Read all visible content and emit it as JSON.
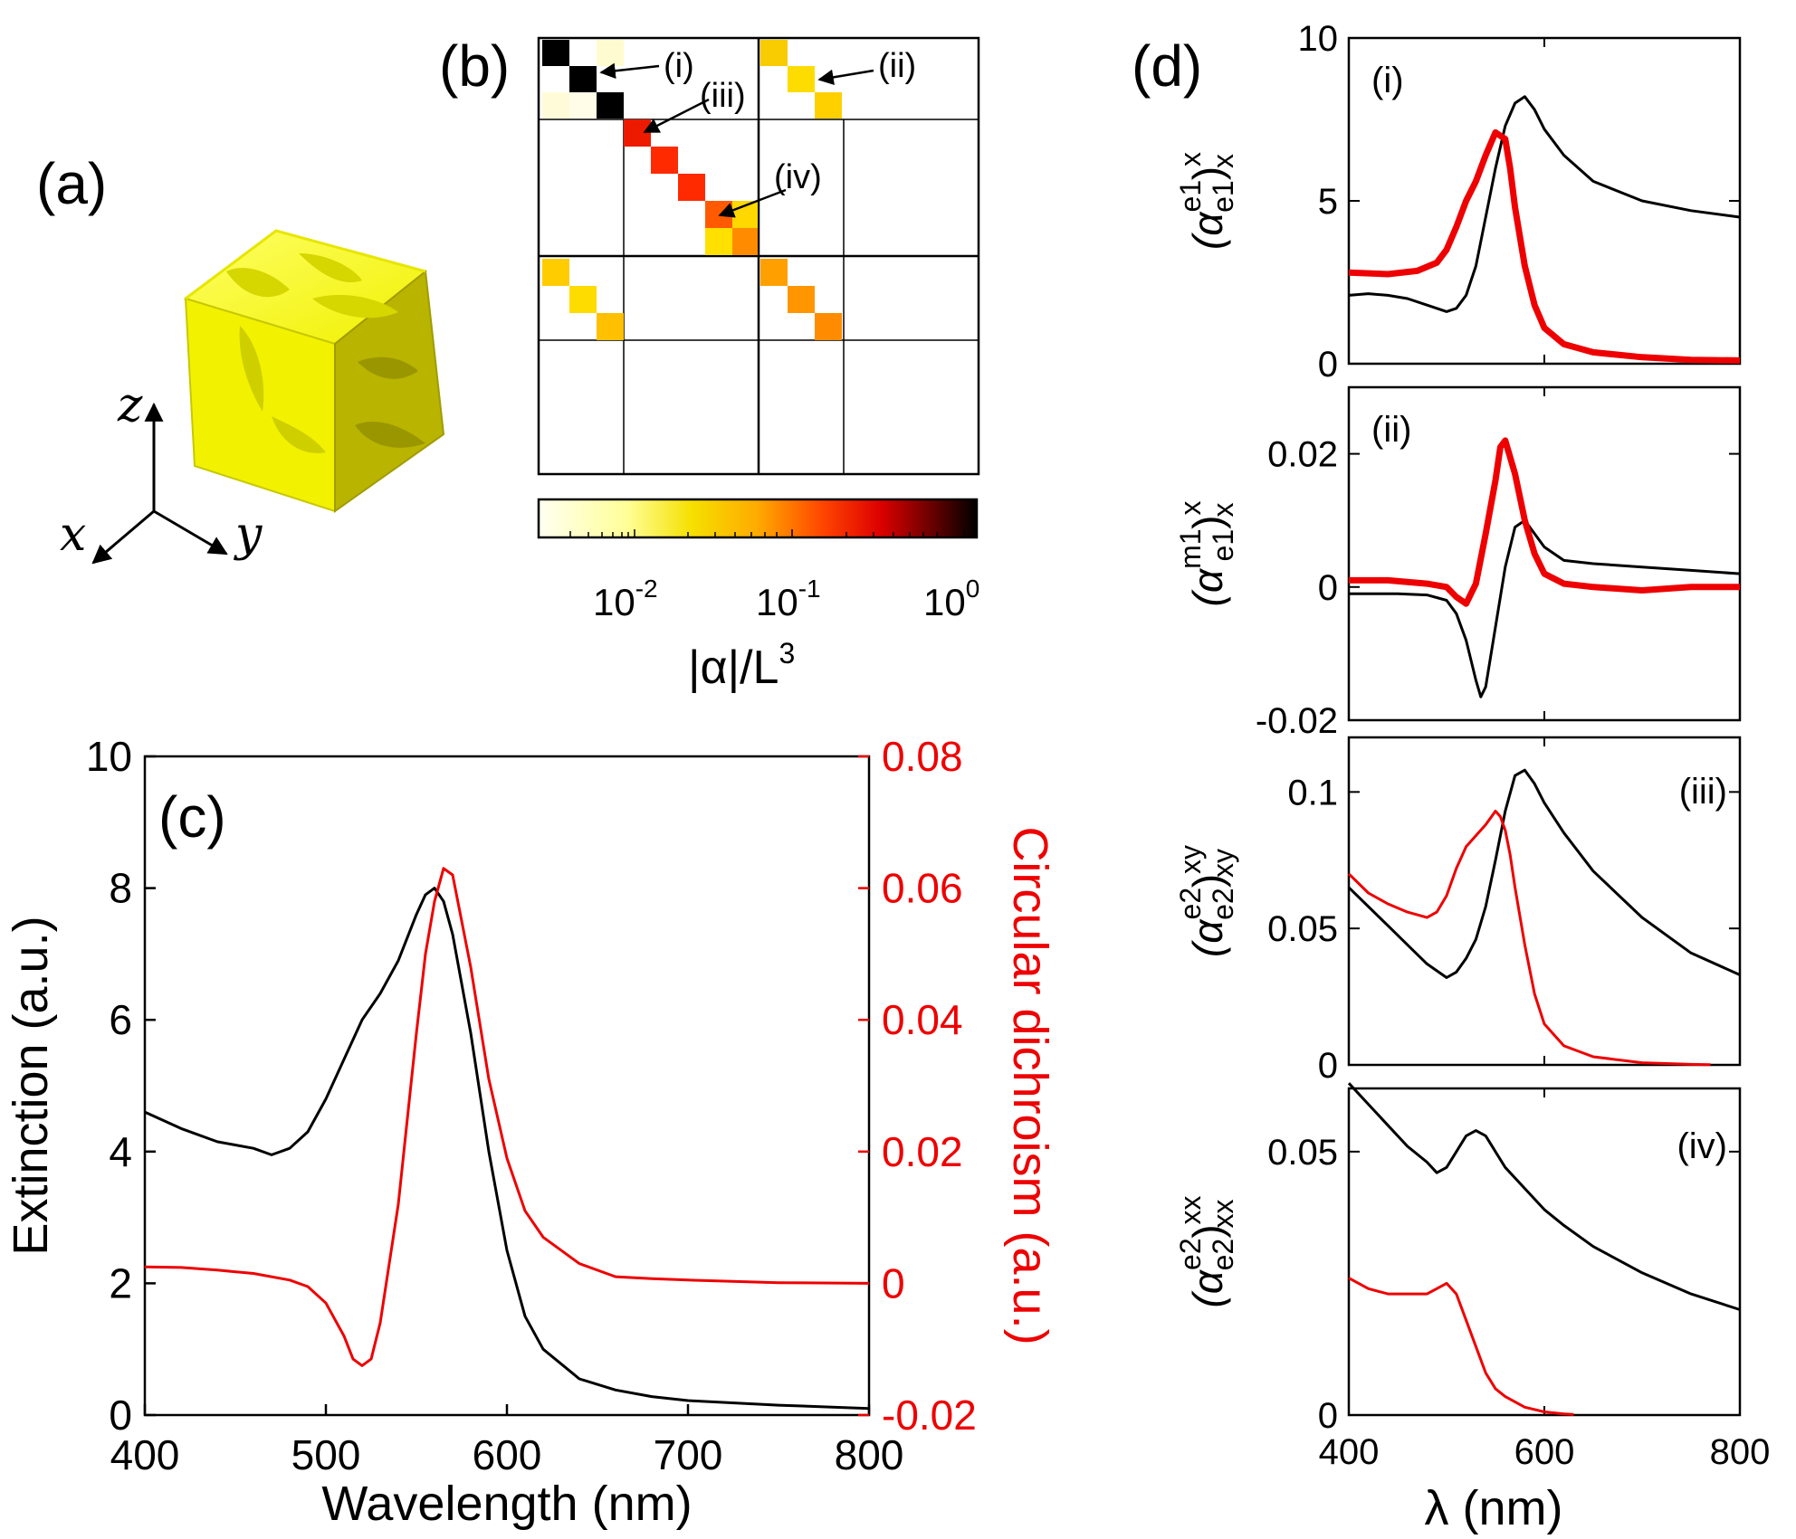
{
  "panel_labels": {
    "a": "(a)",
    "b": "(b)",
    "c": "(c)",
    "d": "(d)"
  },
  "axes3d": {
    "z": "z",
    "x": "x",
    "y": "y"
  },
  "colors": {
    "black": "#000000",
    "red": "#ee0000",
    "gold": "#e8e800"
  },
  "matrix": {
    "annotations": {
      "i": "(i)",
      "ii": "(ii)",
      "iii": "(iii)",
      "iv": "(iv)"
    },
    "colorbar": {
      "tick_labels": [
        "10",
        "10",
        "10"
      ],
      "tick_exps": [
        "-2",
        "-1",
        "0"
      ],
      "label": "|α|/L",
      "label_exp": "3"
    }
  },
  "chart_data": [
    {
      "id": "c",
      "type": "line",
      "xlabel": "Wavelength (nm)",
      "ylabel": "Extinction (a.u.)",
      "y2label": "Circular dichroism (a.u.)",
      "xlim": [
        400,
        800
      ],
      "ylim": [
        0,
        10
      ],
      "y2lim": [
        -0.02,
        0.08
      ],
      "xticks": [
        "400",
        "500",
        "600",
        "700",
        "800"
      ],
      "yticks": [
        "0",
        "2",
        "4",
        "6",
        "8",
        "10"
      ],
      "y2ticks": [
        "-0.02",
        "0",
        "0.02",
        "0.04",
        "0.06",
        "0.08"
      ],
      "series": [
        {
          "name": "Extinction",
          "axis": "left",
          "color": "#000000",
          "x": [
            400,
            420,
            440,
            460,
            470,
            480,
            490,
            500,
            510,
            520,
            530,
            540,
            550,
            555,
            560,
            565,
            570,
            580,
            590,
            600,
            610,
            620,
            640,
            660,
            680,
            700,
            750,
            800
          ],
          "y": [
            4.6,
            4.35,
            4.15,
            4.05,
            3.95,
            4.05,
            4.3,
            4.8,
            5.4,
            6.0,
            6.4,
            6.9,
            7.6,
            7.9,
            8.0,
            7.8,
            7.3,
            5.8,
            4.0,
            2.5,
            1.5,
            1.0,
            0.55,
            0.38,
            0.28,
            0.22,
            0.15,
            0.1
          ]
        },
        {
          "name": "Circular dichroism",
          "axis": "right",
          "color": "#ee0000",
          "x": [
            400,
            420,
            440,
            460,
            480,
            490,
            500,
            510,
            515,
            520,
            525,
            530,
            540,
            550,
            555,
            560,
            565,
            570,
            580,
            590,
            600,
            610,
            620,
            640,
            660,
            680,
            700,
            750,
            800
          ],
          "y": [
            0.0025,
            0.0024,
            0.002,
            0.0015,
            0.0005,
            -0.0005,
            -0.003,
            -0.008,
            -0.0115,
            -0.0125,
            -0.0115,
            -0.006,
            0.012,
            0.038,
            0.05,
            0.058,
            0.063,
            0.062,
            0.048,
            0.031,
            0.019,
            0.011,
            0.007,
            0.003,
            0.001,
            0.0007,
            0.0005,
            0.0001,
            0.0
          ]
        }
      ]
    },
    {
      "id": "d-i",
      "type": "line",
      "tag": "(i)",
      "ylabel_base": "(α",
      "ylabel_sup": "e1",
      "ylabel_sub": "e1",
      "ylabel_close": ")",
      "ylabel_osup": "x",
      "ylabel_osub": "x",
      "xlim": [
        400,
        800
      ],
      "ylim": [
        0,
        10
      ],
      "yticks": [
        "0",
        "5",
        "10"
      ],
      "series": [
        {
          "name": "black",
          "color": "#000000",
          "width": 3,
          "x": [
            400,
            420,
            440,
            460,
            480,
            500,
            510,
            520,
            530,
            540,
            550,
            560,
            570,
            580,
            590,
            600,
            620,
            650,
            700,
            750,
            800
          ],
          "y": [
            2.1,
            2.15,
            2.1,
            2.0,
            1.8,
            1.6,
            1.7,
            2.1,
            3.0,
            4.5,
            6.0,
            7.3,
            8.0,
            8.2,
            7.8,
            7.2,
            6.4,
            5.6,
            5.0,
            4.7,
            4.5
          ]
        },
        {
          "name": "red",
          "color": "#ee0000",
          "width": 7,
          "x": [
            400,
            440,
            470,
            490,
            500,
            510,
            520,
            530,
            540,
            550,
            560,
            565,
            570,
            580,
            590,
            600,
            620,
            650,
            700,
            750,
            800
          ],
          "y": [
            2.8,
            2.75,
            2.85,
            3.1,
            3.5,
            4.2,
            5.0,
            5.6,
            6.4,
            7.1,
            6.9,
            6.0,
            4.8,
            3.0,
            1.8,
            1.1,
            0.6,
            0.35,
            0.2,
            0.12,
            0.1
          ]
        }
      ]
    },
    {
      "id": "d-ii",
      "type": "line",
      "tag": "(ii)",
      "ylabel_base": "(α",
      "ylabel_sup": "m1",
      "ylabel_sub": "e1",
      "ylabel_close": ")",
      "ylabel_osup": "x",
      "ylabel_osub": "x",
      "xlim": [
        400,
        800
      ],
      "ylim": [
        -0.02,
        0.03
      ],
      "yticks": [
        "-0.02",
        "0",
        "0.02"
      ],
      "series": [
        {
          "name": "black",
          "color": "#000000",
          "width": 3,
          "x": [
            400,
            450,
            480,
            500,
            510,
            520,
            530,
            535,
            540,
            550,
            560,
            570,
            580,
            590,
            600,
            620,
            650,
            700,
            750,
            800
          ],
          "y": [
            -0.001,
            -0.001,
            -0.0012,
            -0.002,
            -0.004,
            -0.008,
            -0.014,
            -0.0165,
            -0.015,
            -0.006,
            0.003,
            0.009,
            0.01,
            0.008,
            0.006,
            0.004,
            0.0035,
            0.003,
            0.0025,
            0.002
          ]
        },
        {
          "name": "red",
          "color": "#ee0000",
          "width": 7,
          "x": [
            400,
            440,
            480,
            500,
            510,
            520,
            530,
            540,
            550,
            555,
            560,
            570,
            580,
            590,
            600,
            620,
            650,
            700,
            750,
            800
          ],
          "y": [
            0.001,
            0.001,
            0.0005,
            0.0,
            -0.0015,
            -0.0025,
            0.0005,
            0.008,
            0.016,
            0.021,
            0.022,
            0.017,
            0.01,
            0.005,
            0.002,
            0.0005,
            0.0,
            -0.0005,
            0.0,
            0.0
          ]
        }
      ]
    },
    {
      "id": "d-iii",
      "type": "line",
      "tag": "(iii)",
      "ylabel_base": "(α",
      "ylabel_sup": "e2",
      "ylabel_sub": "e2",
      "ylabel_close": ")",
      "ylabel_osup": "xy",
      "ylabel_osub": "xy",
      "xlim": [
        400,
        800
      ],
      "ylim": [
        0,
        0.12
      ],
      "yticks": [
        "0",
        "0.05",
        "0.1"
      ],
      "series": [
        {
          "name": "black",
          "color": "#000000",
          "width": 3,
          "x": [
            400,
            420,
            440,
            460,
            480,
            500,
            510,
            520,
            530,
            540,
            550,
            560,
            570,
            580,
            590,
            600,
            620,
            650,
            700,
            750,
            800
          ],
          "y": [
            0.065,
            0.058,
            0.051,
            0.044,
            0.037,
            0.032,
            0.034,
            0.039,
            0.046,
            0.058,
            0.075,
            0.093,
            0.106,
            0.108,
            0.103,
            0.096,
            0.085,
            0.071,
            0.054,
            0.041,
            0.033
          ]
        },
        {
          "name": "red",
          "color": "#ee0000",
          "width": 3,
          "x": [
            400,
            420,
            440,
            460,
            480,
            490,
            500,
            510,
            520,
            530,
            540,
            550,
            555,
            560,
            565,
            570,
            580,
            590,
            600,
            620,
            650,
            700,
            750,
            770
          ],
          "y": [
            0.07,
            0.063,
            0.059,
            0.056,
            0.054,
            0.056,
            0.062,
            0.072,
            0.08,
            0.084,
            0.088,
            0.093,
            0.091,
            0.086,
            0.077,
            0.065,
            0.044,
            0.026,
            0.015,
            0.007,
            0.003,
            0.0008,
            0.0002,
            0.0001
          ]
        }
      ]
    },
    {
      "id": "d-iv",
      "type": "line",
      "tag": "(iv)",
      "ylabel_base": "(α",
      "ylabel_sup": "e2",
      "ylabel_sub": "e2",
      "ylabel_close": ")",
      "ylabel_osup": "xx",
      "ylabel_osub": "xx",
      "xlim": [
        400,
        800
      ],
      "ylim": [
        0,
        0.062
      ],
      "yticks": [
        "0",
        "0.05"
      ],
      "series": [
        {
          "name": "black",
          "color": "#000000",
          "width": 3,
          "x": [
            400,
            420,
            440,
            460,
            480,
            490,
            500,
            510,
            520,
            530,
            540,
            550,
            560,
            580,
            600,
            620,
            650,
            700,
            750,
            800
          ],
          "y": [
            0.063,
            0.059,
            0.055,
            0.051,
            0.048,
            0.046,
            0.047,
            0.05,
            0.053,
            0.054,
            0.053,
            0.05,
            0.047,
            0.043,
            0.039,
            0.036,
            0.032,
            0.027,
            0.023,
            0.02
          ]
        },
        {
          "name": "red",
          "color": "#ee0000",
          "width": 3,
          "x": [
            400,
            420,
            440,
            460,
            480,
            490,
            500,
            510,
            520,
            530,
            540,
            550,
            560,
            580,
            600,
            620,
            630
          ],
          "y": [
            0.026,
            0.024,
            0.023,
            0.023,
            0.023,
            0.024,
            0.025,
            0.023,
            0.018,
            0.013,
            0.008,
            0.005,
            0.0035,
            0.0015,
            0.0006,
            0.0002,
            0.0001
          ]
        }
      ]
    }
  ],
  "panel_d_xaxis": {
    "xticks": [
      "400",
      "600",
      "800"
    ],
    "label": "λ (nm)"
  }
}
